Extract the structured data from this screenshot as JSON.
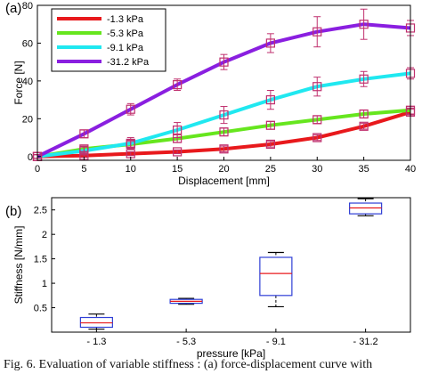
{
  "chart_data": [
    {
      "type": "line",
      "panel_label": "(a)",
      "xlabel": "Displacement [mm]",
      "ylabel": "Force [N]",
      "xlim": [
        0,
        40
      ],
      "ylim": [
        -2,
        80
      ],
      "xticks": [
        0,
        5,
        10,
        15,
        20,
        25,
        30,
        35,
        40
      ],
      "yticks": [
        0,
        20,
        40,
        60,
        80
      ],
      "grid": false,
      "legend_position": "top-left",
      "x": [
        0,
        5,
        10,
        15,
        20,
        25,
        30,
        35,
        40
      ],
      "series": [
        {
          "name": "-1.3 kPa",
          "color": "#e8191c",
          "values": [
            0,
            0.5,
            1.5,
            2.5,
            4,
            6.5,
            10,
            16,
            23.5
          ],
          "errors": [
            1,
            1,
            1,
            1,
            1.5,
            1.5,
            1.5,
            1.5,
            1.5
          ]
        },
        {
          "name": "-5.3 kPa",
          "color": "#66e61e",
          "values": [
            0,
            4,
            6.5,
            9.5,
            13,
            16.5,
            19.5,
            22.5,
            24.5
          ],
          "errors": [
            1,
            1.5,
            1.5,
            2,
            2,
            2,
            2,
            2,
            2
          ]
        },
        {
          "name": "-9.1 kPa",
          "color": "#20e8f0",
          "values": [
            0,
            3,
            7,
            14,
            22,
            30,
            37,
            41,
            44
          ],
          "errors": [
            1,
            2,
            3,
            4,
            4.5,
            5,
            5,
            4,
            3
          ]
        },
        {
          "name": "-31.2 kPa",
          "color": "#8a1fe0",
          "values": [
            0,
            12,
            25,
            38,
            50,
            60,
            66,
            70,
            68
          ],
          "errors": [
            1,
            2,
            3,
            3,
            4,
            5,
            8,
            8,
            4
          ]
        }
      ],
      "errorbar_color": "#c0306e"
    },
    {
      "type": "box",
      "panel_label": "(b)",
      "xlabel": "pressure [kPa]",
      "ylabel": "Stiffness [N/mm]",
      "ylim": [
        0,
        2.75
      ],
      "yticks": [
        0.5,
        1,
        1.5,
        2,
        2.5
      ],
      "categories": [
        "- 1.3",
        "- 5.3",
        "- 9.1",
        "- 31.2"
      ],
      "boxes": [
        {
          "min": 0.06,
          "q1": 0.1,
          "median": 0.19,
          "q3": 0.3,
          "max": 0.37
        },
        {
          "min": 0.57,
          "q1": 0.59,
          "median": 0.63,
          "q3": 0.67,
          "max": 0.69
        },
        {
          "min": 0.52,
          "q1": 0.75,
          "median": 1.2,
          "q3": 1.53,
          "max": 1.63
        },
        {
          "min": 2.38,
          "q1": 2.42,
          "median": 2.54,
          "q3": 2.64,
          "max": 2.73
        }
      ],
      "box_color": "#2f3fd6",
      "median_color": "#e8191c"
    }
  ],
  "caption": "Fig. 6. Evaluation of variable stiffness : (a) force-displacement curve with"
}
